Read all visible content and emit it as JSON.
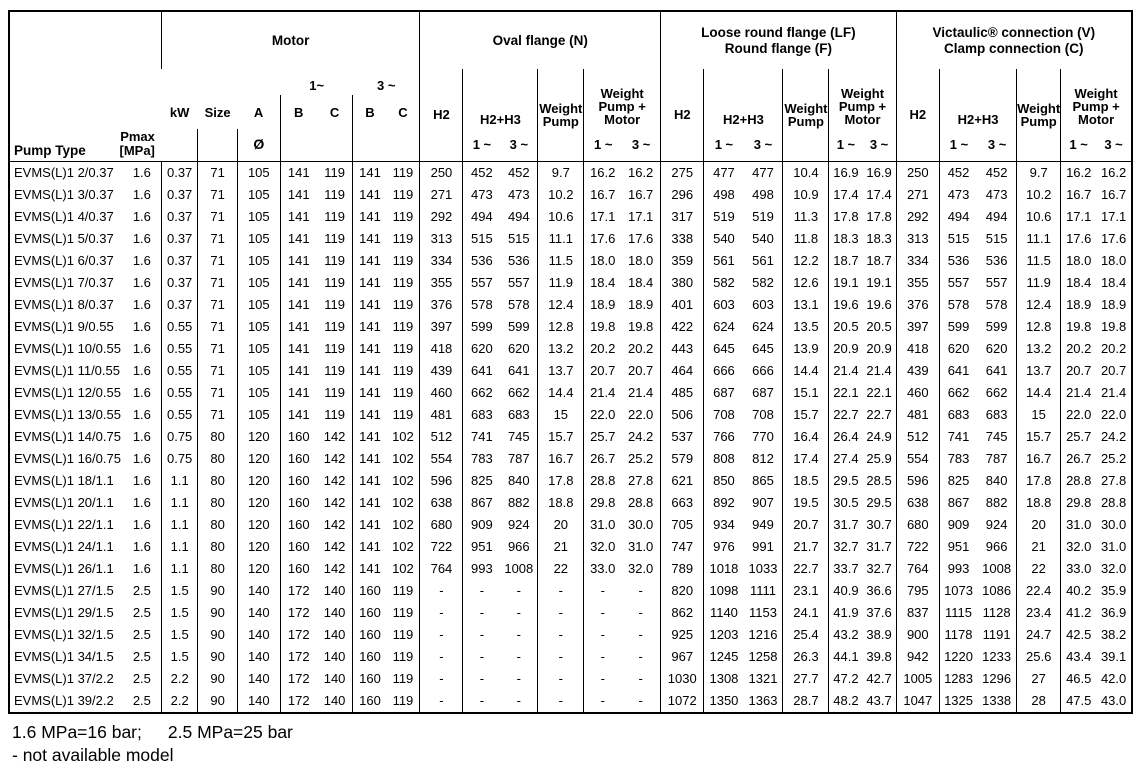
{
  "table": {
    "corner": {
      "pump_type": "Pump Type",
      "pmax_l1": "Pmax",
      "pmax_l2": "[MPa]"
    },
    "groups": {
      "motor": "Motor",
      "oval": "Oval flange (N)",
      "loose_l1": "Loose round flange (LF)",
      "loose_l2": "Round flange (F)",
      "vict_l1": "Victaulic® connection (V)",
      "vict_l2": "Clamp connection (C)"
    },
    "motor_header": {
      "phase1": "1~",
      "phase3": "3 ~",
      "kw": "kW",
      "size": "Size",
      "a": "A",
      "b": "B",
      "c": "C",
      "diameter": "Ø"
    },
    "flange_header": {
      "h2": "H2",
      "h2h3": "H2+H3",
      "weight_pump_l1": "Weight",
      "weight_pump_l2": "Pump",
      "wpm_l1": "Weight",
      "wpm_l2": "Pump +",
      "wpm_l3": "Motor",
      "phase1": "1 ~",
      "phase3": "3 ~"
    },
    "rows": [
      [
        "EVMS(L)1 2/0.37",
        "1.6",
        "0.37",
        "71",
        "105",
        "141",
        "119",
        "141",
        "119",
        "250",
        "452",
        "452",
        "9.7",
        "16.2",
        "16.2",
        "275",
        "477",
        "477",
        "10.4",
        "16.9",
        "16.9",
        "250",
        "452",
        "452",
        "9.7",
        "16.2",
        "16.2"
      ],
      [
        "EVMS(L)1 3/0.37",
        "1.6",
        "0.37",
        "71",
        "105",
        "141",
        "119",
        "141",
        "119",
        "271",
        "473",
        "473",
        "10.2",
        "16.7",
        "16.7",
        "296",
        "498",
        "498",
        "10.9",
        "17.4",
        "17.4",
        "271",
        "473",
        "473",
        "10.2",
        "16.7",
        "16.7"
      ],
      [
        "EVMS(L)1 4/0.37",
        "1.6",
        "0.37",
        "71",
        "105",
        "141",
        "119",
        "141",
        "119",
        "292",
        "494",
        "494",
        "10.6",
        "17.1",
        "17.1",
        "317",
        "519",
        "519",
        "11.3",
        "17.8",
        "17.8",
        "292",
        "494",
        "494",
        "10.6",
        "17.1",
        "17.1"
      ],
      [
        "EVMS(L)1 5/0.37",
        "1.6",
        "0.37",
        "71",
        "105",
        "141",
        "119",
        "141",
        "119",
        "313",
        "515",
        "515",
        "11.1",
        "17.6",
        "17.6",
        "338",
        "540",
        "540",
        "11.8",
        "18.3",
        "18.3",
        "313",
        "515",
        "515",
        "11.1",
        "17.6",
        "17.6"
      ],
      [
        "EVMS(L)1 6/0.37",
        "1.6",
        "0.37",
        "71",
        "105",
        "141",
        "119",
        "141",
        "119",
        "334",
        "536",
        "536",
        "11.5",
        "18.0",
        "18.0",
        "359",
        "561",
        "561",
        "12.2",
        "18.7",
        "18.7",
        "334",
        "536",
        "536",
        "11.5",
        "18.0",
        "18.0"
      ],
      [
        "EVMS(L)1 7/0.37",
        "1.6",
        "0.37",
        "71",
        "105",
        "141",
        "119",
        "141",
        "119",
        "355",
        "557",
        "557",
        "11.9",
        "18.4",
        "18.4",
        "380",
        "582",
        "582",
        "12.6",
        "19.1",
        "19.1",
        "355",
        "557",
        "557",
        "11.9",
        "18.4",
        "18.4"
      ],
      [
        "EVMS(L)1 8/0.37",
        "1.6",
        "0.37",
        "71",
        "105",
        "141",
        "119",
        "141",
        "119",
        "376",
        "578",
        "578",
        "12.4",
        "18.9",
        "18.9",
        "401",
        "603",
        "603",
        "13.1",
        "19.6",
        "19.6",
        "376",
        "578",
        "578",
        "12.4",
        "18.9",
        "18.9"
      ],
      [
        "EVMS(L)1 9/0.55",
        "1.6",
        "0.55",
        "71",
        "105",
        "141",
        "119",
        "141",
        "119",
        "397",
        "599",
        "599",
        "12.8",
        "19.8",
        "19.8",
        "422",
        "624",
        "624",
        "13.5",
        "20.5",
        "20.5",
        "397",
        "599",
        "599",
        "12.8",
        "19.8",
        "19.8"
      ],
      [
        "EVMS(L)1 10/0.55",
        "1.6",
        "0.55",
        "71",
        "105",
        "141",
        "119",
        "141",
        "119",
        "418",
        "620",
        "620",
        "13.2",
        "20.2",
        "20.2",
        "443",
        "645",
        "645",
        "13.9",
        "20.9",
        "20.9",
        "418",
        "620",
        "620",
        "13.2",
        "20.2",
        "20.2"
      ],
      [
        "EVMS(L)1 11/0.55",
        "1.6",
        "0.55",
        "71",
        "105",
        "141",
        "119",
        "141",
        "119",
        "439",
        "641",
        "641",
        "13.7",
        "20.7",
        "20.7",
        "464",
        "666",
        "666",
        "14.4",
        "21.4",
        "21.4",
        "439",
        "641",
        "641",
        "13.7",
        "20.7",
        "20.7"
      ],
      [
        "EVMS(L)1 12/0.55",
        "1.6",
        "0.55",
        "71",
        "105",
        "141",
        "119",
        "141",
        "119",
        "460",
        "662",
        "662",
        "14.4",
        "21.4",
        "21.4",
        "485",
        "687",
        "687",
        "15.1",
        "22.1",
        "22.1",
        "460",
        "662",
        "662",
        "14.4",
        "21.4",
        "21.4"
      ],
      [
        "EVMS(L)1 13/0.55",
        "1.6",
        "0.55",
        "71",
        "105",
        "141",
        "119",
        "141",
        "119",
        "481",
        "683",
        "683",
        "15",
        "22.0",
        "22.0",
        "506",
        "708",
        "708",
        "15.7",
        "22.7",
        "22.7",
        "481",
        "683",
        "683",
        "15",
        "22.0",
        "22.0"
      ],
      [
        "EVMS(L)1 14/0.75",
        "1.6",
        "0.75",
        "80",
        "120",
        "160",
        "142",
        "141",
        "102",
        "512",
        "741",
        "745",
        "15.7",
        "25.7",
        "24.2",
        "537",
        "766",
        "770",
        "16.4",
        "26.4",
        "24.9",
        "512",
        "741",
        "745",
        "15.7",
        "25.7",
        "24.2"
      ],
      [
        "EVMS(L)1 16/0.75",
        "1.6",
        "0.75",
        "80",
        "120",
        "160",
        "142",
        "141",
        "102",
        "554",
        "783",
        "787",
        "16.7",
        "26.7",
        "25.2",
        "579",
        "808",
        "812",
        "17.4",
        "27.4",
        "25.9",
        "554",
        "783",
        "787",
        "16.7",
        "26.7",
        "25.2"
      ],
      [
        "EVMS(L)1 18/1.1",
        "1.6",
        "1.1",
        "80",
        "120",
        "160",
        "142",
        "141",
        "102",
        "596",
        "825",
        "840",
        "17.8",
        "28.8",
        "27.8",
        "621",
        "850",
        "865",
        "18.5",
        "29.5",
        "28.5",
        "596",
        "825",
        "840",
        "17.8",
        "28.8",
        "27.8"
      ],
      [
        "EVMS(L)1 20/1.1",
        "1.6",
        "1.1",
        "80",
        "120",
        "160",
        "142",
        "141",
        "102",
        "638",
        "867",
        "882",
        "18.8",
        "29.8",
        "28.8",
        "663",
        "892",
        "907",
        "19.5",
        "30.5",
        "29.5",
        "638",
        "867",
        "882",
        "18.8",
        "29.8",
        "28.8"
      ],
      [
        "EVMS(L)1 22/1.1",
        "1.6",
        "1.1",
        "80",
        "120",
        "160",
        "142",
        "141",
        "102",
        "680",
        "909",
        "924",
        "20",
        "31.0",
        "30.0",
        "705",
        "934",
        "949",
        "20.7",
        "31.7",
        "30.7",
        "680",
        "909",
        "924",
        "20",
        "31.0",
        "30.0"
      ],
      [
        "EVMS(L)1 24/1.1",
        "1.6",
        "1.1",
        "80",
        "120",
        "160",
        "142",
        "141",
        "102",
        "722",
        "951",
        "966",
        "21",
        "32.0",
        "31.0",
        "747",
        "976",
        "991",
        "21.7",
        "32.7",
        "31.7",
        "722",
        "951",
        "966",
        "21",
        "32.0",
        "31.0"
      ],
      [
        "EVMS(L)1 26/1.1",
        "1.6",
        "1.1",
        "80",
        "120",
        "160",
        "142",
        "141",
        "102",
        "764",
        "993",
        "1008",
        "22",
        "33.0",
        "32.0",
        "789",
        "1018",
        "1033",
        "22.7",
        "33.7",
        "32.7",
        "764",
        "993",
        "1008",
        "22",
        "33.0",
        "32.0"
      ],
      [
        "EVMS(L)1 27/1.5",
        "2.5",
        "1.5",
        "90",
        "140",
        "172",
        "140",
        "160",
        "119",
        "-",
        "-",
        "-",
        "-",
        "-",
        "-",
        "820",
        "1098",
        "1111",
        "23.1",
        "40.9",
        "36.6",
        "795",
        "1073",
        "1086",
        "22.4",
        "40.2",
        "35.9"
      ],
      [
        "EVMS(L)1 29/1.5",
        "2.5",
        "1.5",
        "90",
        "140",
        "172",
        "140",
        "160",
        "119",
        "-",
        "-",
        "-",
        "-",
        "-",
        "-",
        "862",
        "1140",
        "1153",
        "24.1",
        "41.9",
        "37.6",
        "837",
        "1115",
        "1128",
        "23.4",
        "41.2",
        "36.9"
      ],
      [
        "EVMS(L)1 32/1.5",
        "2.5",
        "1.5",
        "90",
        "140",
        "172",
        "140",
        "160",
        "119",
        "-",
        "-",
        "-",
        "-",
        "-",
        "-",
        "925",
        "1203",
        "1216",
        "25.4",
        "43.2",
        "38.9",
        "900",
        "1178",
        "1191",
        "24.7",
        "42.5",
        "38.2"
      ],
      [
        "EVMS(L)1 34/1.5",
        "2.5",
        "1.5",
        "90",
        "140",
        "172",
        "140",
        "160",
        "119",
        "-",
        "-",
        "-",
        "-",
        "-",
        "-",
        "967",
        "1245",
        "1258",
        "26.3",
        "44.1",
        "39.8",
        "942",
        "1220",
        "1233",
        "25.6",
        "43.4",
        "39.1"
      ],
      [
        "EVMS(L)1 37/2.2",
        "2.5",
        "2.2",
        "90",
        "140",
        "172",
        "140",
        "160",
        "119",
        "-",
        "-",
        "-",
        "-",
        "-",
        "-",
        "1030",
        "1308",
        "1321",
        "27.7",
        "47.2",
        "42.7",
        "1005",
        "1283",
        "1296",
        "27",
        "46.5",
        "42.0"
      ],
      [
        "EVMS(L)1 39/2.2",
        "2.5",
        "2.2",
        "90",
        "140",
        "172",
        "140",
        "160",
        "119",
        "-",
        "-",
        "-",
        "-",
        "-",
        "-",
        "1072",
        "1350",
        "1363",
        "28.7",
        "48.2",
        "43.7",
        "1047",
        "1325",
        "1338",
        "28",
        "47.5",
        "43.0"
      ]
    ]
  },
  "footer": {
    "note1a": "1.6 MPa=16 bar;",
    "note1b": "2.5 MPa=25 bar",
    "note2": "- not available model"
  }
}
